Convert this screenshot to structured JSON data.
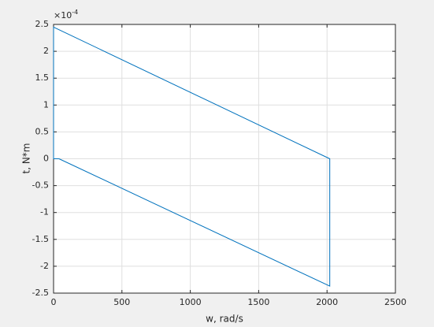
{
  "chart_data": {
    "type": "line",
    "xlabel": "w, rad/s",
    "ylabel": "t, N*m",
    "y_multiplier": {
      "base": "×10",
      "exponent": "-4"
    },
    "x": [
      40,
      0,
      0,
      2020,
      2020,
      40
    ],
    "series": [
      {
        "color": "#0072bd",
        "values": [
          0,
          0,
          2.45,
          0,
          -2.37,
          0
        ]
      }
    ],
    "xlim": [
      0,
      2500
    ],
    "xticks": [
      0,
      500,
      1000,
      1500,
      2000,
      2500
    ],
    "ylim": [
      -2.5,
      2.5
    ],
    "yticks": [
      -2.5,
      -2,
      -1.5,
      -1,
      -0.5,
      0,
      0.5,
      1,
      1.5,
      2,
      2.5
    ],
    "grid": true
  }
}
